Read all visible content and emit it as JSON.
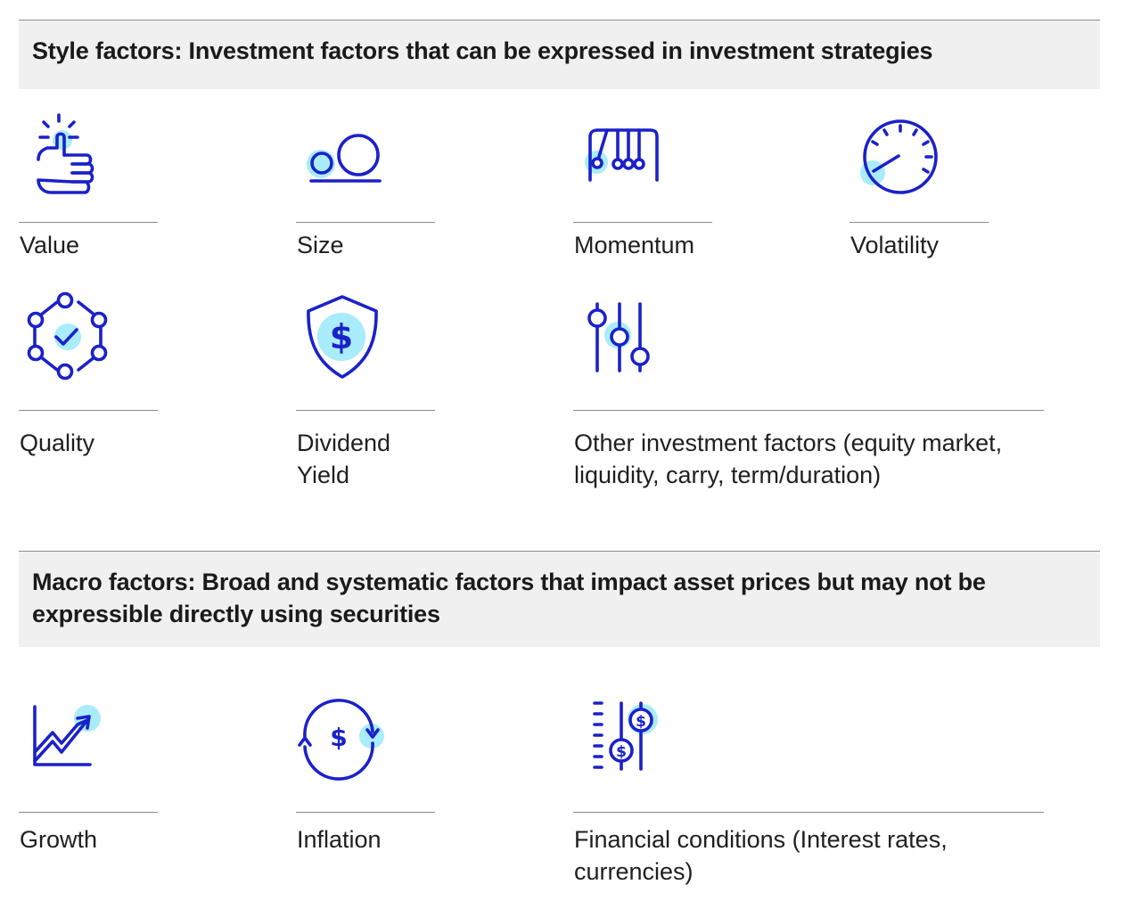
{
  "style_section": {
    "title": "Style factors: Investment factors that can be expressed in investment strategies",
    "factors": [
      {
        "label": "Value",
        "icon": "thumbs-up-icon"
      },
      {
        "label": "Size",
        "icon": "size-circles-icon"
      },
      {
        "label": "Momentum",
        "icon": "newtons-cradle-icon"
      },
      {
        "label": "Volatility",
        "icon": "speedometer-icon"
      },
      {
        "label": "Quality",
        "icon": "network-check-icon"
      },
      {
        "label": "Dividend Yield",
        "icon": "dollar-shield-icon"
      },
      {
        "label": "Other investment factors (equity market, liquidity, carry, term/duration)",
        "icon": "slider-controls-icon"
      }
    ]
  },
  "macro_section": {
    "title": "Macro factors: Broad and systematic factors that impact asset prices but may not be expressible directly using securities",
    "factors": [
      {
        "label": "Growth",
        "icon": "growth-chart-icon"
      },
      {
        "label": "Inflation",
        "icon": "dollar-cycle-icon"
      },
      {
        "label": "Financial conditions (Interest rates, currencies)",
        "icon": "dollar-sliders-icon"
      }
    ]
  },
  "colors": {
    "icon_stroke": "#1a21c9",
    "icon_highlight": "#a9ecfb",
    "header_background": "#f0f0f0",
    "rule": "#8a8a8a"
  }
}
